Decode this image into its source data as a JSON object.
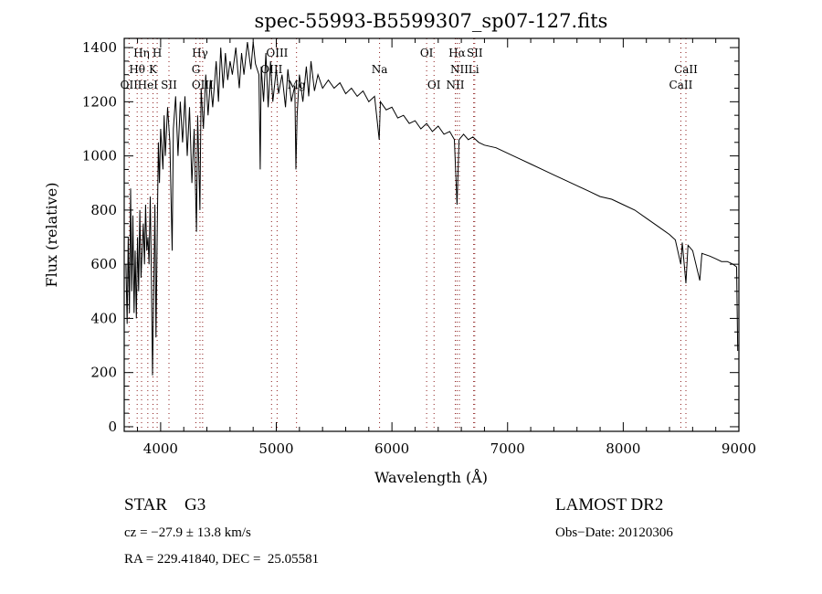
{
  "chart_data": {
    "type": "line",
    "title": "spec-55993-B5599307_sp07-127.fits",
    "xlabel": "Wavelength (Å)",
    "ylabel": "Flux (relative)",
    "xlim": [
      3685,
      9000
    ],
    "ylim": [
      -17,
      1434
    ],
    "xticks": [
      4000,
      5000,
      6000,
      7000,
      8000,
      9000
    ],
    "yticks": [
      0,
      200,
      400,
      600,
      800,
      1000,
      1200,
      1400
    ],
    "line_color": "#000000",
    "marker_color": "#8b1a1a",
    "spectrum": [
      [
        3700,
        600
      ],
      [
        3710,
        380
      ],
      [
        3720,
        700
      ],
      [
        3730,
        420
      ],
      [
        3740,
        880
      ],
      [
        3750,
        500
      ],
      [
        3760,
        780
      ],
      [
        3770,
        420
      ],
      [
        3780,
        650
      ],
      [
        3790,
        400
      ],
      [
        3800,
        700
      ],
      [
        3810,
        500
      ],
      [
        3820,
        800
      ],
      [
        3830,
        550
      ],
      [
        3850,
        750
      ],
      [
        3860,
        600
      ],
      [
        3870,
        820
      ],
      [
        3880,
        650
      ],
      [
        3890,
        700
      ],
      [
        3900,
        600
      ],
      [
        3910,
        850
      ],
      [
        3920,
        550
      ],
      [
        3930,
        190
      ],
      [
        3940,
        500
      ],
      [
        3950,
        820
      ],
      [
        3960,
        330
      ],
      [
        3970,
        700
      ],
      [
        3980,
        1050
      ],
      [
        3990,
        900
      ],
      [
        4000,
        1100
      ],
      [
        4020,
        950
      ],
      [
        4030,
        1150
      ],
      [
        4040,
        1000
      ],
      [
        4060,
        1180
      ],
      [
        4080,
        1050
      ],
      [
        4100,
        650
      ],
      [
        4110,
        1100
      ],
      [
        4130,
        1220
      ],
      [
        4150,
        1000
      ],
      [
        4170,
        1200
      ],
      [
        4190,
        1050
      ],
      [
        4210,
        1220
      ],
      [
        4230,
        1000
      ],
      [
        4250,
        1180
      ],
      [
        4270,
        900
      ],
      [
        4290,
        1100
      ],
      [
        4310,
        720
      ],
      [
        4320,
        1150
      ],
      [
        4340,
        800
      ],
      [
        4350,
        1250
      ],
      [
        4370,
        1100
      ],
      [
        4390,
        1300
      ],
      [
        4410,
        1150
      ],
      [
        4430,
        1280
      ],
      [
        4450,
        1180
      ],
      [
        4480,
        1350
      ],
      [
        4500,
        1200
      ],
      [
        4520,
        1400
      ],
      [
        4540,
        1250
      ],
      [
        4560,
        1380
      ],
      [
        4580,
        1280
      ],
      [
        4600,
        1350
      ],
      [
        4620,
        1300
      ],
      [
        4650,
        1400
      ],
      [
        4680,
        1250
      ],
      [
        4700,
        1380
      ],
      [
        4720,
        1300
      ],
      [
        4750,
        1420
      ],
      [
        4780,
        1320
      ],
      [
        4800,
        1420
      ],
      [
        4820,
        1340
      ],
      [
        4850,
        1300
      ],
      [
        4861,
        950
      ],
      [
        4870,
        1330
      ],
      [
        4890,
        1200
      ],
      [
        4910,
        1380
      ],
      [
        4930,
        1180
      ],
      [
        4950,
        1350
      ],
      [
        4970,
        1200
      ],
      [
        5000,
        1320
      ],
      [
        5020,
        1230
      ],
      [
        5050,
        1300
      ],
      [
        5080,
        1180
      ],
      [
        5100,
        1320
      ],
      [
        5130,
        1200
      ],
      [
        5160,
        1260
      ],
      [
        5170,
        950
      ],
      [
        5180,
        1150
      ],
      [
        5200,
        1300
      ],
      [
        5230,
        1200
      ],
      [
        5260,
        1330
      ],
      [
        5280,
        1220
      ],
      [
        5300,
        1350
      ],
      [
        5330,
        1240
      ],
      [
        5360,
        1300
      ],
      [
        5400,
        1250
      ],
      [
        5450,
        1280
      ],
      [
        5500,
        1250
      ],
      [
        5550,
        1270
      ],
      [
        5600,
        1230
      ],
      [
        5650,
        1250
      ],
      [
        5700,
        1220
      ],
      [
        5750,
        1240
      ],
      [
        5800,
        1200
      ],
      [
        5850,
        1220
      ],
      [
        5890,
        1060
      ],
      [
        5900,
        1200
      ],
      [
        5950,
        1170
      ],
      [
        6000,
        1180
      ],
      [
        6050,
        1140
      ],
      [
        6100,
        1150
      ],
      [
        6150,
        1120
      ],
      [
        6200,
        1130
      ],
      [
        6250,
        1100
      ],
      [
        6300,
        1120
      ],
      [
        6350,
        1090
      ],
      [
        6400,
        1110
      ],
      [
        6450,
        1080
      ],
      [
        6500,
        1090
      ],
      [
        6540,
        1060
      ],
      [
        6563,
        820
      ],
      [
        6580,
        1060
      ],
      [
        6620,
        1080
      ],
      [
        6660,
        1060
      ],
      [
        6700,
        1070
      ],
      [
        6750,
        1050
      ],
      [
        6800,
        1040
      ],
      [
        6900,
        1030
      ],
      [
        7000,
        1010
      ],
      [
        7100,
        990
      ],
      [
        7200,
        970
      ],
      [
        7300,
        950
      ],
      [
        7400,
        930
      ],
      [
        7500,
        910
      ],
      [
        7600,
        890
      ],
      [
        7700,
        870
      ],
      [
        7800,
        850
      ],
      [
        7900,
        840
      ],
      [
        8000,
        820
      ],
      [
        8100,
        800
      ],
      [
        8200,
        770
      ],
      [
        8300,
        740
      ],
      [
        8400,
        710
      ],
      [
        8450,
        690
      ],
      [
        8498,
        600
      ],
      [
        8510,
        680
      ],
      [
        8542,
        530
      ],
      [
        8560,
        670
      ],
      [
        8600,
        650
      ],
      [
        8662,
        540
      ],
      [
        8680,
        640
      ],
      [
        8750,
        630
      ],
      [
        8800,
        620
      ],
      [
        8850,
        610
      ],
      [
        8900,
        610
      ],
      [
        8950,
        600
      ],
      [
        8980,
        590
      ],
      [
        8990,
        280
      ]
    ],
    "line_markers": [
      {
        "label": "Hη",
        "wavelength": 3835,
        "row": 0
      },
      {
        "label": "H",
        "wavelength": 3970,
        "row": 0
      },
      {
        "label": "Hγ",
        "wavelength": 4340,
        "row": 0
      },
      {
        "label": "OIII",
        "wavelength": 5007,
        "row": 0
      },
      {
        "label": "OI",
        "wavelength": 6300,
        "row": 0
      },
      {
        "label": "Hα",
        "wavelength": 6563,
        "row": 0
      },
      {
        "label": "SII",
        "wavelength": 6716,
        "row": 0
      },
      {
        "label": "Hθ",
        "wavelength": 3797,
        "row": 1
      },
      {
        "label": "K",
        "wavelength": 3934,
        "row": 1
      },
      {
        "label": "G",
        "wavelength": 4305,
        "row": 1
      },
      {
        "label": "OIII",
        "wavelength": 4959,
        "row": 1
      },
      {
        "label": "Na",
        "wavelength": 5893,
        "row": 1
      },
      {
        "label": "NII",
        "wavelength": 6583,
        "row": 1
      },
      {
        "label": "Li",
        "wavelength": 6707,
        "row": 1
      },
      {
        "label": "CaII",
        "wavelength": 8542,
        "row": 1
      },
      {
        "label": "OII",
        "wavelength": 3727,
        "row": 2
      },
      {
        "label": "HeI",
        "wavelength": 3889,
        "row": 2
      },
      {
        "label": "SII",
        "wavelength": 4072,
        "row": 2
      },
      {
        "label": "OIII",
        "wavelength": 4363,
        "row": 2
      },
      {
        "label": "Mg",
        "wavelength": 5175,
        "row": 2
      },
      {
        "label": "OI",
        "wavelength": 6364,
        "row": 2
      },
      {
        "label": "NII",
        "wavelength": 6548,
        "row": 2
      },
      {
        "label": "CaII",
        "wavelength": 8498,
        "row": 2
      }
    ]
  },
  "info": {
    "class": "STAR    G3",
    "survey": "LAMOST DR2",
    "redshift": "cz = −27.9 ± 13.8 km/s",
    "obs_date": "Obs−Date: 20120306",
    "coords": "RA = 229.41840, DEC =  25.05581"
  }
}
